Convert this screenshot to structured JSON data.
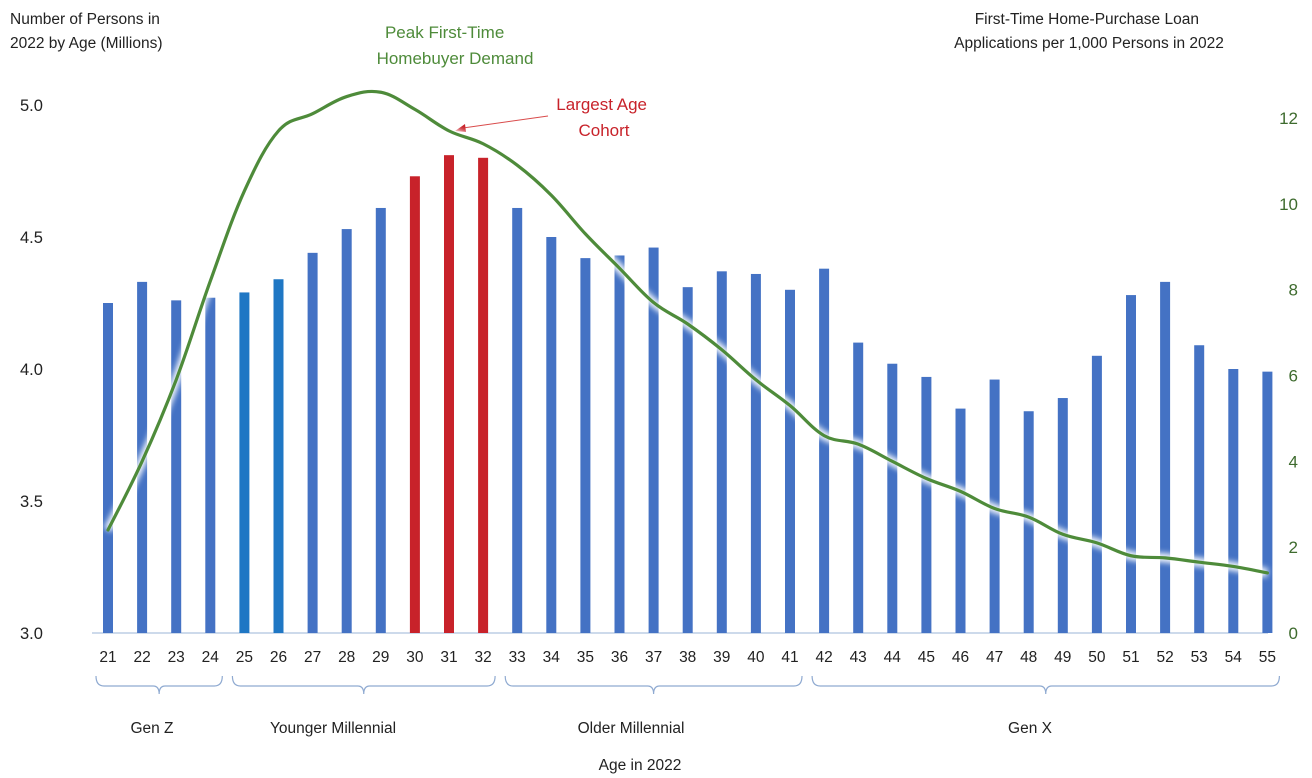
{
  "chart_data": {
    "type": "bar",
    "xlabel": "Age in 2022",
    "ylabel_left": [
      "Number of Persons in",
      "2022 by Age (Millions)"
    ],
    "ylabel_right": [
      "First-Time Home-Purchase Loan",
      "Applications per 1,000 Persons in 2022"
    ],
    "ylim_left": [
      3.0,
      5.0
    ],
    "ylim_right": [
      0,
      12
    ],
    "yticks_left": [
      "3.0",
      "3.5",
      "4.0",
      "4.5",
      "5.0"
    ],
    "yticks_right": [
      "0",
      "2",
      "4",
      "6",
      "8",
      "10",
      "12"
    ],
    "categories": [
      "21",
      "22",
      "23",
      "24",
      "25",
      "26",
      "27",
      "28",
      "29",
      "30",
      "31",
      "32",
      "33",
      "34",
      "35",
      "36",
      "37",
      "38",
      "39",
      "40",
      "41",
      "42",
      "43",
      "44",
      "45",
      "46",
      "47",
      "48",
      "49",
      "50",
      "51",
      "52",
      "53",
      "54",
      "55"
    ],
    "series": [
      {
        "axis": "left",
        "values": [
          4.25,
          4.33,
          4.26,
          4.27,
          4.29,
          4.34,
          4.44,
          4.53,
          4.61,
          4.73,
          4.81,
          4.8,
          4.61,
          4.5,
          4.42,
          4.43,
          4.46,
          4.31,
          4.37,
          4.36,
          4.3,
          4.38,
          4.1,
          4.02,
          3.97,
          3.85,
          3.96,
          3.84,
          3.89,
          4.05,
          4.28,
          4.33,
          4.09,
          4.0,
          3.99
        ],
        "bar_colors": [
          "#4472C4",
          "#4472C4",
          "#4472C4",
          "#4472C4",
          "#1F77C4",
          "#1F77C4",
          "#4472C4",
          "#4472C4",
          "#4472C4",
          "#C8222A",
          "#C8222A",
          "#C8222A",
          "#4472C4",
          "#4472C4",
          "#4472C4",
          "#4472C4",
          "#4472C4",
          "#4472C4",
          "#4472C4",
          "#4472C4",
          "#4472C4",
          "#4472C4",
          "#4472C4",
          "#4472C4",
          "#4472C4",
          "#4472C4",
          "#4472C4",
          "#4472C4",
          "#4472C4",
          "#4472C4",
          "#4472C4",
          "#4472C4",
          "#4472C4",
          "#4472C4",
          "#4472C4"
        ]
      },
      {
        "axis": "right",
        "type": "line",
        "color": "#4E8B3A",
        "values": [
          2.4,
          4.0,
          5.9,
          8.2,
          10.3,
          11.7,
          12.1,
          12.5,
          12.6,
          12.2,
          11.7,
          11.4,
          10.9,
          10.2,
          9.3,
          8.5,
          7.7,
          7.2,
          6.6,
          5.9,
          5.3,
          4.6,
          4.4,
          4.0,
          3.6,
          3.3,
          2.9,
          2.7,
          2.3,
          2.1,
          1.8,
          1.75,
          1.65,
          1.55,
          1.4
        ]
      }
    ],
    "annotations": [
      {
        "lines": [
          "Peak First-Time",
          "Homebuyer Demand"
        ],
        "color": "#4E8B3A"
      },
      {
        "lines": [
          "Largest Age",
          "Cohort"
        ],
        "color": "#C8222A",
        "arrow_to_category": "31"
      }
    ],
    "groups": [
      {
        "label": "Gen Z",
        "from": "21",
        "to": "24"
      },
      {
        "label": "Younger Millennial",
        "from": "25",
        "to": "32"
      },
      {
        "label": "Older Millennial",
        "from": "33",
        "to": "41"
      },
      {
        "label": "Gen X",
        "from": "42",
        "to": "55"
      }
    ],
    "grid": false,
    "legend": "none"
  },
  "colors": {
    "axis_line": "#AFC4DF",
    "bracket": "#8FAAD1",
    "right_axis_text": "#3E6B2E"
  }
}
